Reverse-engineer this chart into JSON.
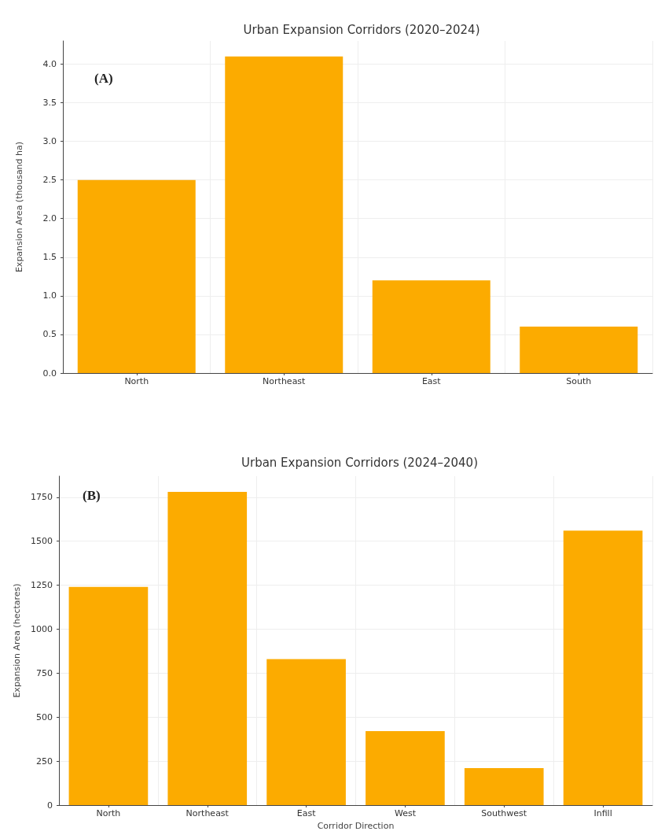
{
  "chart_data": [
    {
      "type": "bar",
      "title": "Urban Expansion Corridors (2020–2024)",
      "ylabel": "Expansion Area (thousand ha)",
      "categories": [
        "North",
        "Northeast",
        "East",
        "South"
      ],
      "values": [
        2.5,
        4.1,
        1.2,
        0.6
      ],
      "color": "#fcab00",
      "ylim": [
        0,
        4.3
      ],
      "yticks": [
        {
          "value": 0,
          "label": "0.0"
        },
        0.5,
        {
          "value": 1,
          "label": "1.0"
        },
        1.5,
        {
          "value": 2,
          "label": "2.0"
        },
        2.5,
        {
          "value": 3,
          "label": "3.0"
        },
        3.5,
        {
          "value": 4,
          "label": "4.0"
        }
      ],
      "grid": true,
      "annotations": [
        "(A)"
      ]
    },
    {
      "type": "bar",
      "title": "Urban Expansion Corridors (2024–2040)",
      "xlabel": "Corridor Direction",
      "ylabel": "Expansion Area (hectares)",
      "categories": [
        "North",
        "Northeast",
        "East",
        "West",
        "Southwest",
        "Infill"
      ],
      "values": [
        1240,
        1780,
        830,
        420,
        210,
        1560
      ],
      "color": "#fcab00",
      "ylim": [
        0,
        1870
      ],
      "yticks": [
        0,
        250,
        500,
        750,
        1000,
        1250,
        1500,
        1750
      ],
      "grid": true,
      "annotations": [
        "(B)"
      ]
    }
  ]
}
